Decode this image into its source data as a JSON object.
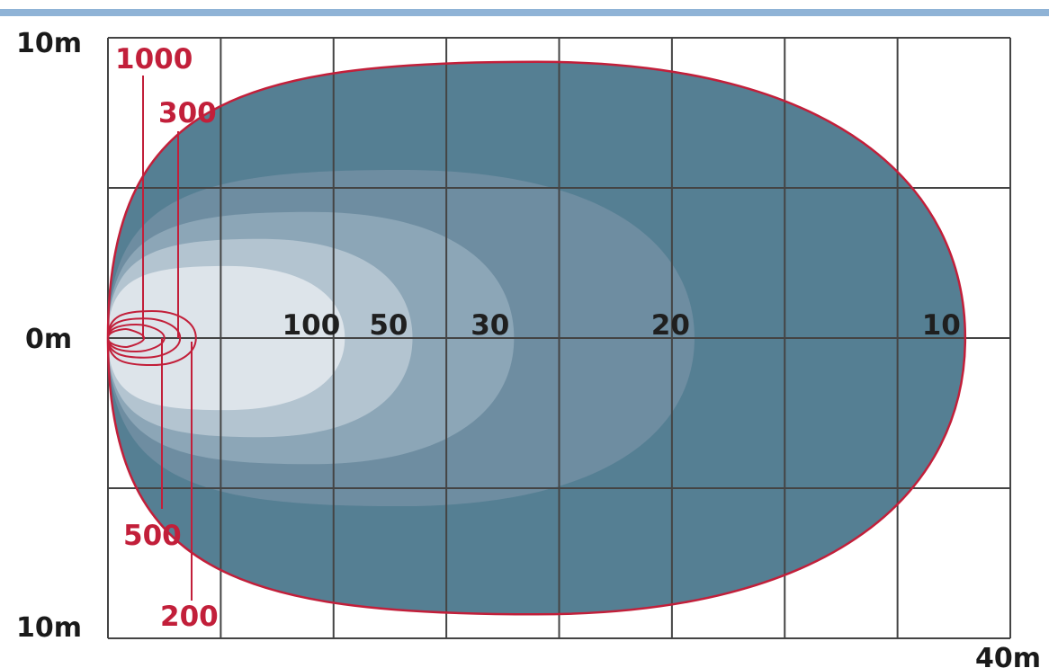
{
  "chart_data": {
    "type": "isolux contour diagram",
    "axis_labels": {
      "y_top": "10m",
      "y_mid": "0m",
      "y_bottom": "10m",
      "x_end": "40m"
    },
    "x_range_m": [
      0,
      40
    ],
    "y_range_m": [
      -10,
      10
    ],
    "grid": true,
    "grid_columns": 8,
    "grid_rows": 4,
    "contours": [
      {
        "label": "10",
        "reach_m": 38.0,
        "half_width_m": 9.2,
        "fill": "#557f93"
      },
      {
        "label": "20",
        "reach_m": 26.0,
        "half_width_m": 5.6,
        "fill": "#6e8da1"
      },
      {
        "label": "30",
        "reach_m": 18.0,
        "half_width_m": 4.2,
        "fill": "#8ca6b7"
      },
      {
        "label": "50",
        "reach_m": 13.5,
        "half_width_m": 3.3,
        "fill": "#b3c4d0"
      },
      {
        "label": "100",
        "reach_m": 10.5,
        "half_width_m": 2.4,
        "fill": "#dde4ea"
      }
    ],
    "near_contours": [
      {
        "label": "200",
        "reach_m": 3.9,
        "half_width_m": 0.9
      },
      {
        "label": "300",
        "reach_m": 3.2,
        "half_width_m": 0.65
      },
      {
        "label": "500",
        "reach_m": 2.5,
        "half_width_m": 0.45
      },
      {
        "label": "1000",
        "reach_m": 1.6,
        "half_width_m": 0.3
      }
    ],
    "colors": {
      "outline": "#c21f3a",
      "grid": "#444444",
      "axis_text": "#1a1a1a",
      "near_text": "#c21f3a",
      "top_rule": "#8fb3d6"
    }
  }
}
